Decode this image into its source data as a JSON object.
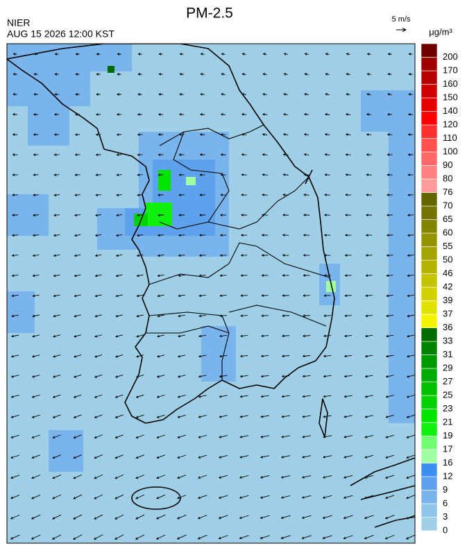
{
  "header": {
    "title": "PM-2.5",
    "agency": "NIER",
    "timestamp": "AUG 15 2026 12:00 KST",
    "wind_reference": "5 m/s"
  },
  "colorbar": {
    "unit": "μg/m³",
    "levels": [
      0,
      3,
      6,
      9,
      12,
      16,
      17,
      19,
      21,
      23,
      25,
      27,
      29,
      31,
      33,
      36,
      37,
      39,
      42,
      46,
      50,
      55,
      60,
      65,
      70,
      76,
      80,
      90,
      100,
      110,
      120,
      140,
      150,
      160,
      170,
      200
    ],
    "colors": [
      "#9fcfe6",
      "#8fc3ea",
      "#7ab4ec",
      "#5ea2ee",
      "#3c8ff0",
      "#a0ffa0",
      "#70ff70",
      "#10f010",
      "#00e400",
      "#00d200",
      "#00c000",
      "#00ac00",
      "#009800",
      "#008400",
      "#006c00",
      "#f4f400",
      "#e2e200",
      "#d2d200",
      "#c4c400",
      "#b4b400",
      "#a4a400",
      "#949400",
      "#848400",
      "#747400",
      "#646400",
      "#ff9a9a",
      "#ff8080",
      "#ff6868",
      "#ff5050",
      "#ff3030",
      "#ff0000",
      "#e80000",
      "#d00000",
      "#b80000",
      "#a00000",
      "#700000"
    ]
  }
}
